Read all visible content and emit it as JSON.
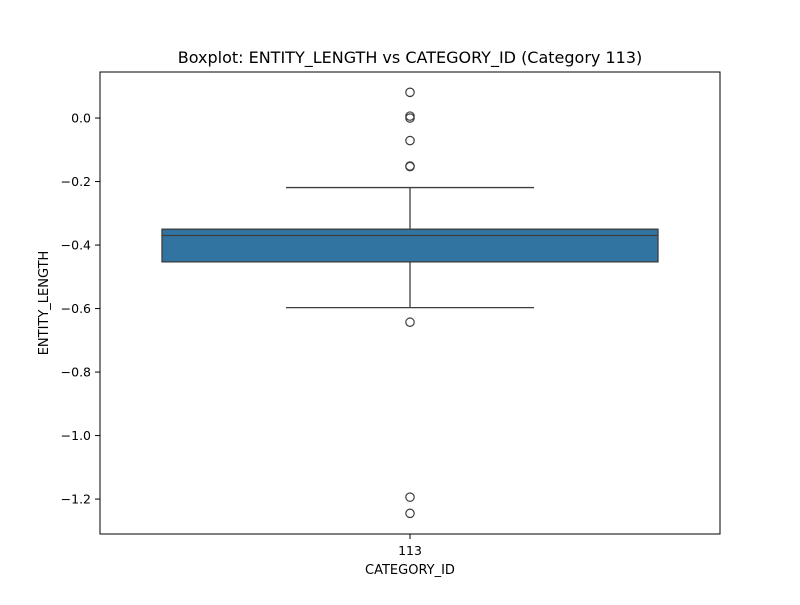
{
  "chart_data": {
    "type": "boxplot",
    "title": "Boxplot: ENTITY_LENGTH vs CATEGORY_ID (Category 113)",
    "xlabel": "CATEGORY_ID",
    "ylabel": "ENTITY_LENGTH",
    "categories": [
      "113"
    ],
    "ylim": [
      -1.31,
      0.145
    ],
    "yticks": [
      0.0,
      -0.2,
      -0.4,
      -0.6,
      -0.8,
      -1.0,
      -1.2
    ],
    "ytick_labels": [
      "0.0",
      "−0.2",
      "−0.4",
      "−0.6",
      "−0.8",
      "−1.0",
      "−1.2"
    ],
    "grid": false,
    "boxes": [
      {
        "category": "113",
        "q1": -0.453,
        "median": -0.37,
        "q3": -0.35,
        "whisker_low": -0.597,
        "whisker_high": -0.219,
        "outliers": [
          0.081,
          0.006,
          0.0,
          -0.071,
          -0.151,
          -0.153,
          -0.643,
          -1.194,
          -1.245
        ]
      }
    ],
    "colors": {
      "box_fill": "#3274a1",
      "line": "#3d3d3d",
      "axis": "#000000"
    }
  }
}
